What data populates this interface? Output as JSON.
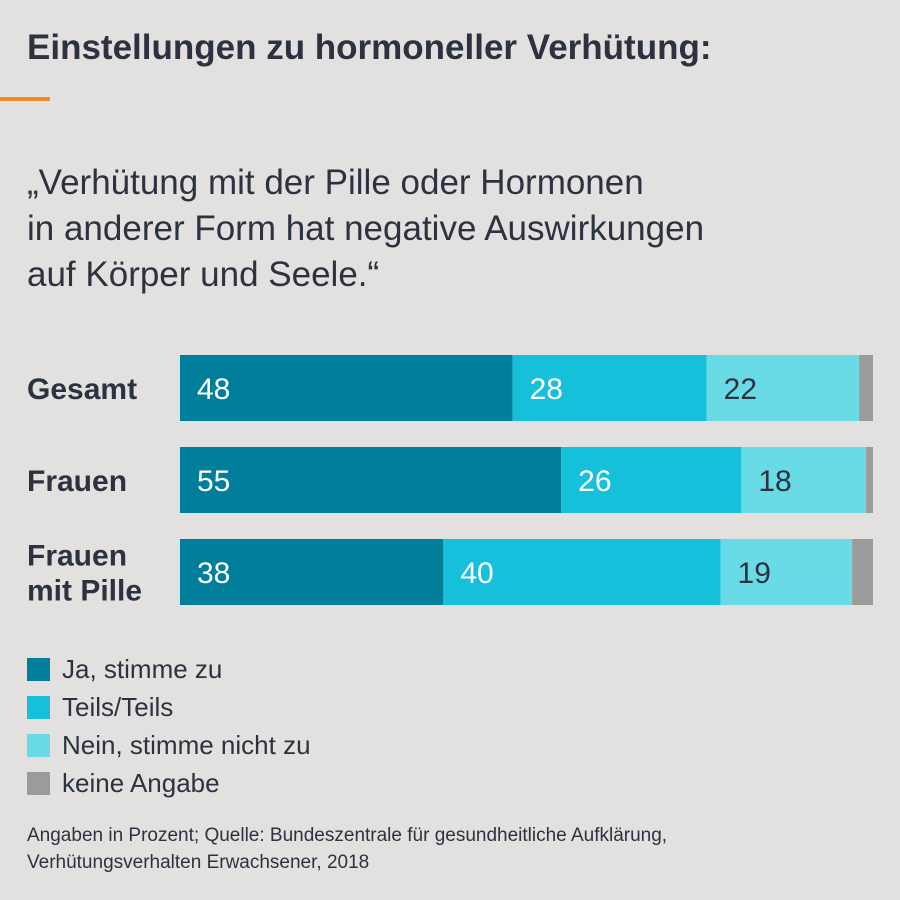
{
  "title": "Einstellungen zu hormoneller Verhütung:",
  "subtitle_lines": [
    "„Verhütung mit der Pille oder Hormonen",
    "in anderer Form hat negative Auswirkungen",
    "auf Körper und Seele.“"
  ],
  "colors": {
    "accent": "#f08a24",
    "ja": "#017e9a",
    "teils": "#16bfda",
    "nein": "#68dbe6",
    "keine": "#9b9b9b"
  },
  "chart_data": {
    "type": "bar",
    "orientation": "horizontal",
    "stacked": true,
    "categories": [
      "Gesamt",
      "Frauen",
      "Frauen mit Pille"
    ],
    "category_label_lines": [
      [
        "Gesamt"
      ],
      [
        "Frauen"
      ],
      [
        "Frauen",
        "mit Pille"
      ]
    ],
    "series": [
      {
        "name": "Ja, stimme zu",
        "values": [
          48,
          55,
          38
        ],
        "color": "#017e9a"
      },
      {
        "name": "Teils/Teils",
        "values": [
          28,
          26,
          40
        ],
        "color": "#16bfda"
      },
      {
        "name": "Nein, stimme nicht zu",
        "values": [
          22,
          18,
          19
        ],
        "color": "#68dbe6"
      },
      {
        "name": "keine Angabe",
        "values": [
          2,
          1,
          3
        ],
        "color": "#9b9b9b"
      }
    ],
    "data_labels": [
      [
        "48",
        "28",
        "22",
        ""
      ],
      [
        "55",
        "26",
        "18",
        ""
      ],
      [
        "38",
        "40",
        "19",
        ""
      ]
    ],
    "xlim": [
      0,
      100
    ],
    "grid": false,
    "legend_position": "bottom-left"
  },
  "legend": [
    {
      "label": "Ja, stimme zu",
      "color": "#017e9a"
    },
    {
      "label": "Teils/Teils",
      "color": "#16bfda"
    },
    {
      "label": "Nein, stimme nicht zu",
      "color": "#68dbe6"
    },
    {
      "label": "keine Angabe",
      "color": "#9b9b9b"
    }
  ],
  "source_lines": [
    "Angaben in Prozent; Quelle: Bundeszentrale für gesundheitliche Aufklärung,",
    "Verhütungsverhalten Erwachsener, 2018"
  ]
}
